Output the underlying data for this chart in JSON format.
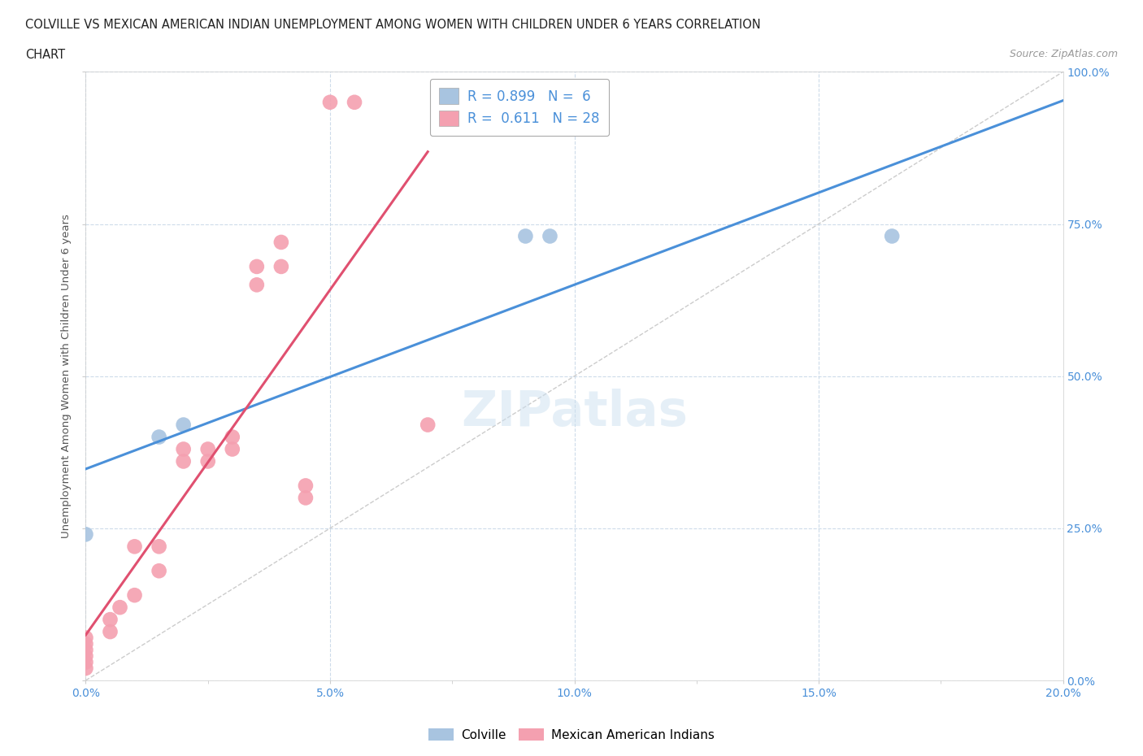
{
  "title_line1": "COLVILLE VS MEXICAN AMERICAN INDIAN UNEMPLOYMENT AMONG WOMEN WITH CHILDREN UNDER 6 YEARS CORRELATION",
  "title_line2": "CHART",
  "source_text": "Source: ZipAtlas.com",
  "ylabel": "Unemployment Among Women with Children Under 6 years",
  "colville_R": 0.899,
  "colville_N": 6,
  "mexican_R": 0.611,
  "mexican_N": 28,
  "colville_color": "#a8c4e0",
  "colville_line_color": "#4a90d9",
  "mexican_color": "#f4a0b0",
  "mexican_line_color": "#e05070",
  "background_color": "#ffffff",
  "grid_color": "#c8d8e8",
  "axis_label_color": "#4a90d9",
  "xlim": [
    0,
    0.2
  ],
  "ylim": [
    0,
    1.0
  ],
  "xtick_labels": [
    "0.0%",
    "",
    "5.0%",
    "",
    "10.0%",
    "",
    "15.0%",
    "",
    "20.0%"
  ],
  "xtick_values": [
    0.0,
    0.025,
    0.05,
    0.075,
    0.1,
    0.125,
    0.15,
    0.175,
    0.2
  ],
  "xtick_display": [
    "0.0%",
    "5.0%",
    "10.0%",
    "15.0%",
    "20.0%"
  ],
  "xtick_display_values": [
    0.0,
    0.05,
    0.1,
    0.15,
    0.2
  ],
  "ytick_labels": [
    "0.0%",
    "25.0%",
    "50.0%",
    "75.0%",
    "100.0%"
  ],
  "ytick_values": [
    0.0,
    0.25,
    0.5,
    0.75,
    1.0
  ],
  "colville_x": [
    0.0,
    0.015,
    0.02,
    0.09,
    0.095,
    0.165
  ],
  "colville_y": [
    0.24,
    0.4,
    0.42,
    0.73,
    0.73,
    0.73
  ],
  "mexican_x": [
    0.0,
    0.0,
    0.0,
    0.0,
    0.0,
    0.0,
    0.005,
    0.005,
    0.007,
    0.01,
    0.01,
    0.015,
    0.015,
    0.02,
    0.02,
    0.025,
    0.025,
    0.03,
    0.03,
    0.035,
    0.035,
    0.04,
    0.04,
    0.045,
    0.045,
    0.05,
    0.055,
    0.07
  ],
  "mexican_y": [
    0.02,
    0.03,
    0.04,
    0.05,
    0.06,
    0.07,
    0.08,
    0.1,
    0.12,
    0.14,
    0.22,
    0.18,
    0.22,
    0.36,
    0.38,
    0.36,
    0.38,
    0.38,
    0.4,
    0.65,
    0.68,
    0.68,
    0.72,
    0.3,
    0.32,
    0.95,
    0.95,
    0.42
  ]
}
